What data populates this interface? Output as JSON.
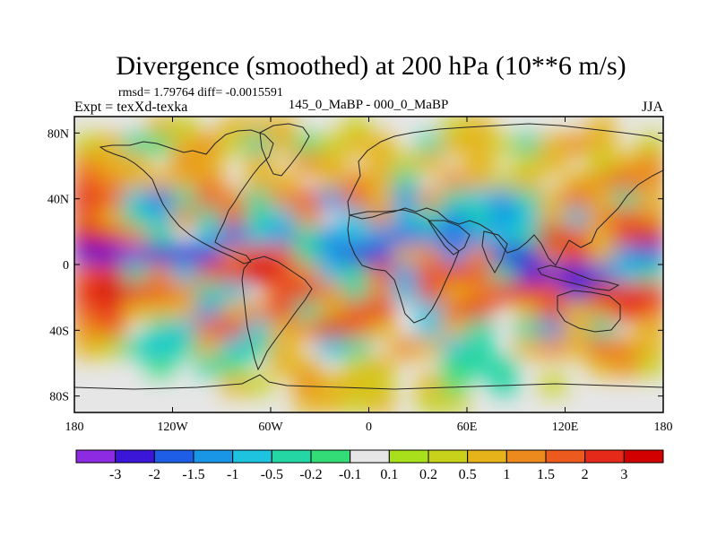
{
  "chart_data": {
    "type": "heatmap",
    "title": "Divergence (smoothed) at 200 hPa (10**6 m/s)",
    "stats_line": "rmsd= 1.79764 diff= -0.0015591",
    "left_label": "Expt = texXd-texka",
    "center_label": "145_0_MaBP - 000_0_MaBP",
    "right_label": "JJA",
    "x_axis": {
      "range": [
        -180,
        180
      ],
      "ticks": [
        {
          "value": -180,
          "label": "180"
        },
        {
          "value": -120,
          "label": "120W"
        },
        {
          "value": -60,
          "label": "60W"
        },
        {
          "value": 0,
          "label": "0"
        },
        {
          "value": 60,
          "label": "60E"
        },
        {
          "value": 120,
          "label": "120E"
        },
        {
          "value": 180,
          "label": "180"
        }
      ]
    },
    "y_axis": {
      "range": [
        -90,
        90
      ],
      "ticks": [
        {
          "value": 80,
          "label": "80N"
        },
        {
          "value": 40,
          "label": "40N"
        },
        {
          "value": 0,
          "label": "0"
        },
        {
          "value": -40,
          "label": "40S"
        },
        {
          "value": -80,
          "label": "80S"
        }
      ]
    },
    "colorbar": {
      "levels": [
        "-3",
        "-2",
        "-1.5",
        "-1",
        "-0.5",
        "-0.2",
        "-0.1",
        "0.1",
        "0.2",
        "0.5",
        "1",
        "1.5",
        "2",
        "3"
      ],
      "colors": [
        "#8c2be2",
        "#3b16d8",
        "#1e5ee6",
        "#1996e6",
        "#1ec3e0",
        "#23d6a3",
        "#34dc78",
        "#e6e6e6",
        "#a8e01c",
        "#c8d21a",
        "#e6b41a",
        "#ec8a1e",
        "#ec5a1e",
        "#e62a1a",
        "#d20000"
      ]
    },
    "field": [
      [
        0.0,
        0.0,
        0.0,
        0.5,
        0.3,
        0.0,
        0.5,
        0.8,
        0.5,
        0.0,
        0.0,
        0.2,
        0.0,
        0.0,
        0.0,
        0.3,
        0.5,
        0.0,
        0.0,
        0.0,
        0.0,
        0.5,
        0.0,
        0.0
      ],
      [
        0.3,
        0.5,
        -0.5,
        -0.2,
        0.5,
        1.0,
        0.2,
        -0.5,
        0.5,
        -0.2,
        0.3,
        0.8,
        0.5,
        0.0,
        -0.5,
        0.5,
        0.8,
        0.2,
        -0.3,
        0.5,
        1.0,
        0.5,
        0.0,
        0.2
      ],
      [
        1.0,
        0.5,
        0.5,
        0.0,
        1.0,
        0.5,
        0.0,
        0.5,
        0.0,
        1.0,
        0.5,
        0.0,
        0.5,
        0.2,
        0.5,
        0.0,
        0.8,
        0.0,
        0.3,
        0.5,
        0.0,
        0.2,
        0.5,
        1.0
      ],
      [
        1.5,
        1.2,
        0.5,
        0.5,
        0.5,
        1.0,
        0.0,
        0.5,
        0.8,
        0.0,
        0.5,
        1.0,
        0.5,
        -0.5,
        0.0,
        1.0,
        0.5,
        0.2,
        0.5,
        0.0,
        0.5,
        1.0,
        1.5,
        1.0
      ],
      [
        2.0,
        1.5,
        -1.0,
        -2.0,
        -0.5,
        1.5,
        1.0,
        -0.5,
        1.0,
        1.5,
        -1.5,
        1.5,
        0.5,
        -1.5,
        1.0,
        -0.5,
        -1.0,
        -1.5,
        -0.5,
        0.5,
        1.5,
        0.5,
        -0.5,
        0.5
      ],
      [
        1.5,
        0.5,
        -0.5,
        -1.0,
        1.0,
        -0.5,
        1.5,
        -0.5,
        -1.0,
        1.0,
        0.0,
        -1.0,
        1.0,
        -1.0,
        -0.5,
        -1.5,
        -0.5,
        -1.5,
        -1.0,
        0.5,
        -1.0,
        1.0,
        1.5,
        1.0
      ],
      [
        3.0,
        2.0,
        1.0,
        -0.5,
        0.0,
        -1.0,
        -2.0,
        -1.0,
        -1.5,
        -0.5,
        -1.5,
        -1.0,
        -1.5,
        -2.0,
        -1.5,
        -2.0,
        -1.5,
        -1.0,
        -0.5,
        3.0,
        1.5,
        0.5,
        2.5,
        3.0
      ],
      [
        -2.5,
        -3.0,
        -3.5,
        -3.0,
        -3.0,
        -2.5,
        1.0,
        2.5,
        1.5,
        -0.5,
        -1.5,
        -3.0,
        -2.5,
        0.5,
        1.0,
        -1.5,
        1.0,
        -2.5,
        -3.0,
        1.0,
        2.5,
        0.5,
        -1.5,
        -2.0
      ],
      [
        1.5,
        2.0,
        -0.5,
        1.0,
        -1.0,
        1.5,
        2.5,
        3.0,
        2.0,
        1.0,
        -1.0,
        -0.5,
        1.5,
        -1.5,
        1.5,
        2.0,
        1.5,
        -0.5,
        -3.0,
        -2.5,
        -3.0,
        -2.0,
        -1.0,
        -0.5
      ],
      [
        2.5,
        3.0,
        2.5,
        1.5,
        1.0,
        -0.5,
        -1.0,
        0.0,
        1.5,
        2.5,
        1.0,
        -0.5,
        1.0,
        -1.0,
        2.0,
        0.5,
        1.0,
        2.5,
        2.0,
        1.5,
        -2.5,
        3.0,
        2.0,
        2.5
      ],
      [
        1.5,
        2.0,
        0.5,
        0.5,
        0.5,
        -1.5,
        0.5,
        1.0,
        2.0,
        -0.5,
        0.5,
        1.5,
        2.0,
        0.0,
        -1.0,
        1.5,
        2.5,
        0.0,
        0.5,
        2.0,
        0.5,
        1.0,
        2.5,
        1.5
      ],
      [
        1.0,
        1.5,
        0.0,
        -0.5,
        -1.0,
        1.5,
        2.5,
        -1.0,
        0.5,
        1.0,
        3.0,
        1.5,
        0.5,
        0.0,
        -1.0,
        0.5,
        -0.5,
        0.0,
        -0.5,
        -1.5,
        0.5,
        -0.5,
        0.0,
        0.5
      ],
      [
        0.5,
        0.3,
        -0.5,
        -1.0,
        -0.5,
        0.5,
        -1.0,
        -0.5,
        0.5,
        0.0,
        -1.0,
        -0.5,
        0.0,
        1.0,
        0.5,
        -1.0,
        -0.5,
        0.0,
        0.5,
        1.0,
        0.5,
        1.5,
        1.0,
        0.5
      ],
      [
        0.0,
        0.0,
        0.0,
        -0.2,
        0.0,
        -0.5,
        -0.2,
        0.0,
        0.5,
        0.5,
        0.0,
        0.2,
        0.5,
        0.0,
        0.0,
        -0.2,
        -0.5,
        -0.3,
        0.0,
        0.0,
        0.0,
        0.5,
        1.0,
        0.3
      ],
      [
        0.0,
        0.0,
        0.0,
        0.0,
        0.0,
        0.0,
        0.5,
        0.2,
        0.0,
        1.0,
        0.5,
        0.8,
        0.2,
        0.0,
        0.5,
        -0.2,
        0.0,
        -0.5,
        0.0,
        0.2,
        0.0,
        0.0,
        0.0,
        0.0
      ],
      [
        0.0,
        0.0,
        0.0,
        0.0,
        0.0,
        0.0,
        0.0,
        0.0,
        0.0,
        0.5,
        0.5,
        0.2,
        0.5,
        0.0,
        0.2,
        0.2,
        0.0,
        0.0,
        0.0,
        0.0,
        0.0,
        0.0,
        0.0,
        0.0
      ]
    ]
  }
}
